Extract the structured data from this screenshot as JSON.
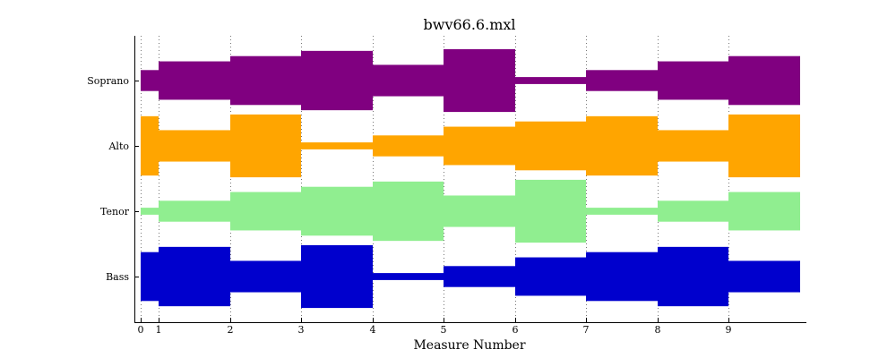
{
  "chart_data": {
    "type": "area",
    "title": "bwv66.6.mxl",
    "xlabel": "Measure Number",
    "ylabel": "",
    "x_ticks": [
      0,
      1,
      2,
      3,
      4,
      5,
      6,
      7,
      8,
      9
    ],
    "xlim": [
      0,
      10
    ],
    "grid": "vertical dotted",
    "series": [
      {
        "name": "Soprano",
        "color": "#800080",
        "segments": [
          {
            "start": 0,
            "end": 0.25,
            "width": 3
          },
          {
            "start": 0.25,
            "end": 1.25,
            "width": 5.5
          },
          {
            "start": 1.25,
            "end": 2.25,
            "width": 7
          },
          {
            "start": 2.25,
            "end": 3.25,
            "width": 8.5
          },
          {
            "start": 3.25,
            "end": 4.25,
            "width": 4.5
          },
          {
            "start": 4.25,
            "end": 5.25,
            "width": 9
          },
          {
            "start": 5.25,
            "end": 6.25,
            "width": 1
          },
          {
            "start": 6.25,
            "end": 7.25,
            "width": 3
          },
          {
            "start": 7.25,
            "end": 8.25,
            "width": 5.5
          },
          {
            "start": 8.25,
            "end": 9.25,
            "width": 7
          }
        ]
      },
      {
        "name": "Alto",
        "color": "#FFA500",
        "segments": [
          {
            "start": 0,
            "end": 0.25,
            "width": 8.5
          },
          {
            "start": 0.25,
            "end": 1.25,
            "width": 4.5
          },
          {
            "start": 1.25,
            "end": 2.25,
            "width": 9
          },
          {
            "start": 2.25,
            "end": 3.25,
            "width": 1
          },
          {
            "start": 3.25,
            "end": 4.25,
            "width": 3
          },
          {
            "start": 4.25,
            "end": 5.25,
            "width": 5.5
          },
          {
            "start": 5.25,
            "end": 6.25,
            "width": 7
          },
          {
            "start": 6.25,
            "end": 7.25,
            "width": 8.5
          },
          {
            "start": 7.25,
            "end": 8.25,
            "width": 4.5
          },
          {
            "start": 8.25,
            "end": 9.25,
            "width": 9
          }
        ]
      },
      {
        "name": "Tenor",
        "color": "#90EE90",
        "segments": [
          {
            "start": 0,
            "end": 0.25,
            "width": 1
          },
          {
            "start": 0.25,
            "end": 1.25,
            "width": 3
          },
          {
            "start": 1.25,
            "end": 2.25,
            "width": 5.5
          },
          {
            "start": 2.25,
            "end": 3.25,
            "width": 7
          },
          {
            "start": 3.25,
            "end": 4.25,
            "width": 8.5
          },
          {
            "start": 4.25,
            "end": 5.25,
            "width": 4.5
          },
          {
            "start": 5.25,
            "end": 6.25,
            "width": 9
          },
          {
            "start": 6.25,
            "end": 7.25,
            "width": 1
          },
          {
            "start": 7.25,
            "end": 8.25,
            "width": 3
          },
          {
            "start": 8.25,
            "end": 9.25,
            "width": 5.5
          }
        ]
      },
      {
        "name": "Bass",
        "color": "#0000CD",
        "segments": [
          {
            "start": 0,
            "end": 0.25,
            "width": 7
          },
          {
            "start": 0.25,
            "end": 1.25,
            "width": 8.5
          },
          {
            "start": 1.25,
            "end": 2.25,
            "width": 4.5
          },
          {
            "start": 2.25,
            "end": 3.25,
            "width": 9
          },
          {
            "start": 3.25,
            "end": 4.25,
            "width": 1
          },
          {
            "start": 4.25,
            "end": 5.25,
            "width": 3
          },
          {
            "start": 5.25,
            "end": 6.25,
            "width": 5.5
          },
          {
            "start": 6.25,
            "end": 7.25,
            "width": 7
          },
          {
            "start": 7.25,
            "end": 8.25,
            "width": 8.5
          },
          {
            "start": 8.25,
            "end": 9.25,
            "width": 4.5
          }
        ]
      }
    ]
  }
}
